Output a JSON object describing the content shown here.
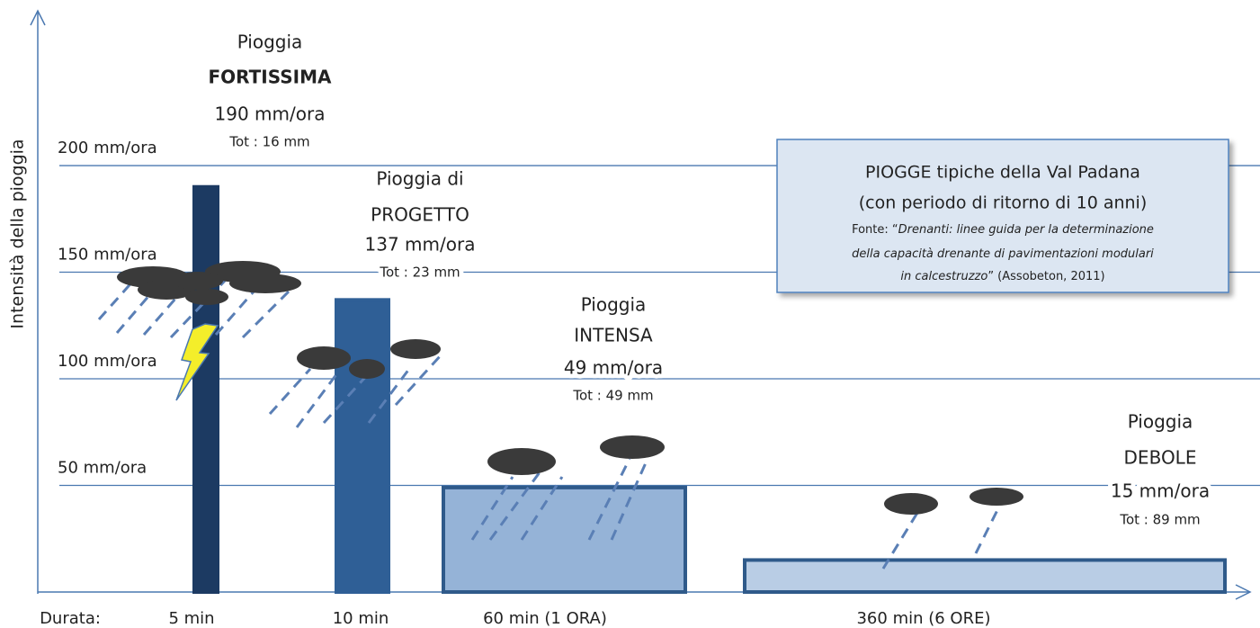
{
  "chart_data": {
    "type": "bar",
    "y_label": "Intensità della pioggia",
    "x_label": "Durata:",
    "categories": [
      "5 min",
      "10 min",
      "60 min (1 ORA)",
      "360 min (6 ORE)"
    ],
    "values": [
      190,
      137,
      49,
      15
    ],
    "value_labels": [
      "190 mm/ora",
      "137 mm/ora",
      "49 mm/ora",
      "15 mm/ora"
    ],
    "names": [
      [
        "Pioggia",
        "FORTISSIMA"
      ],
      [
        "Pioggia di",
        "PROGETTO"
      ],
      [
        "Pioggia",
        "INTENSA"
      ],
      [
        "Pioggia",
        "DEBOLE"
      ]
    ],
    "totals": [
      "Tot : 16 mm",
      "Tot : 23 mm",
      "Tot : 49 mm",
      "Tot : 89 mm"
    ],
    "colors": [
      "#1c3a62",
      "#2f5f96",
      "#95b3d7",
      "#b9cde5"
    ],
    "ylim": [
      0,
      265
    ],
    "yticks": [
      {
        "value": 50,
        "label": "50 mm/ora"
      },
      {
        "value": 100,
        "label": "100 mm/ora"
      },
      {
        "value": 150,
        "label": "150 mm/ora"
      },
      {
        "value": 200,
        "label": "200 mm/ora"
      }
    ],
    "grid": true,
    "note": {
      "title": [
        "PIOGGE tipiche della Val Padana",
        "(con periodo di ritorno di 10 anni)"
      ],
      "source": [
        [
          {
            "text": "Fonte: “",
            "italic": false
          },
          {
            "text": "Drenanti: linee guida per la determinazione",
            "italic": true
          }
        ],
        [
          {
            "text": "della capacità drenante di pavimentazioni modulari",
            "italic": true
          }
        ],
        [
          {
            "text": "in calcestruzzo",
            "italic": true
          },
          {
            "text": "” (Assobeton, 2011)",
            "italic": false
          }
        ]
      ]
    }
  }
}
